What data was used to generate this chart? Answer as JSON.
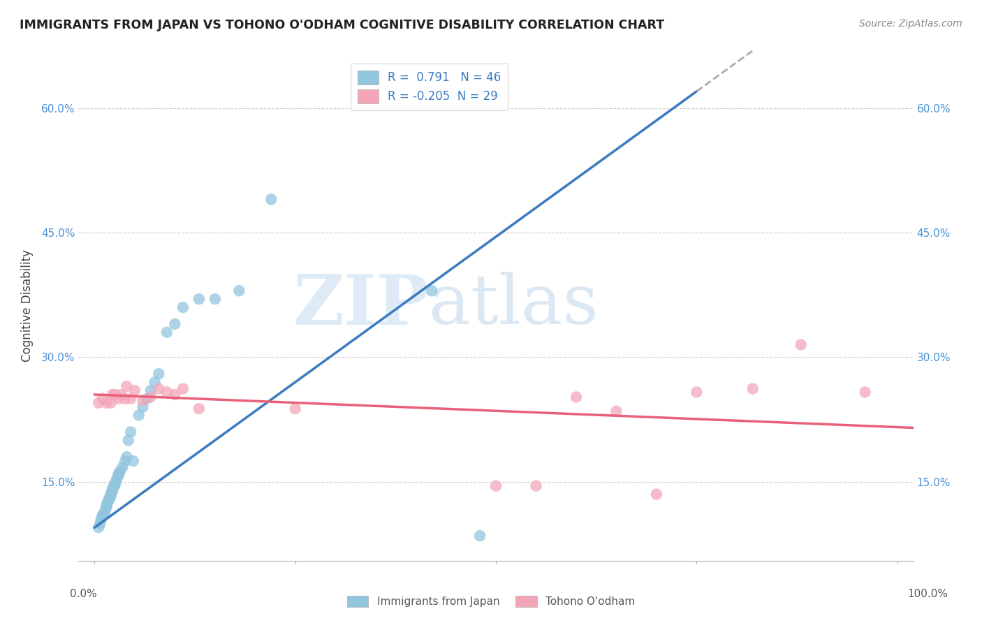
{
  "title": "IMMIGRANTS FROM JAPAN VS TOHONO O'ODHAM COGNITIVE DISABILITY CORRELATION CHART",
  "source": "Source: ZipAtlas.com",
  "ylabel": "Cognitive Disability",
  "r_blue": 0.791,
  "n_blue": 46,
  "r_pink": -0.205,
  "n_pink": 29,
  "blue_color": "#92c5de",
  "pink_color": "#f4a6b8",
  "blue_line_color": "#3a7bbf",
  "pink_line_color": "#e8607a",
  "xlim": [
    -0.02,
    1.02
  ],
  "ylim": [
    0.055,
    0.67
  ],
  "yticks": [
    0.15,
    0.3,
    0.45,
    0.6
  ],
  "ytick_labels": [
    "15.0%",
    "30.0%",
    "45.0%",
    "60.0%"
  ],
  "watermark_zip": "ZIP",
  "watermark_atlas": "atlas",
  "blue_scatter_x": [
    0.005,
    0.007,
    0.008,
    0.01,
    0.01,
    0.012,
    0.013,
    0.014,
    0.015,
    0.015,
    0.016,
    0.018,
    0.018,
    0.02,
    0.02,
    0.022,
    0.022,
    0.023,
    0.025,
    0.025,
    0.027,
    0.028,
    0.03,
    0.03,
    0.032,
    0.035,
    0.038,
    0.04,
    0.042,
    0.045,
    0.048,
    0.055,
    0.06,
    0.065,
    0.07,
    0.075,
    0.08,
    0.09,
    0.1,
    0.11,
    0.13,
    0.15,
    0.18,
    0.22,
    0.42,
    0.48
  ],
  "blue_scatter_y": [
    0.095,
    0.1,
    0.105,
    0.108,
    0.11,
    0.112,
    0.115,
    0.118,
    0.12,
    0.122,
    0.125,
    0.128,
    0.13,
    0.132,
    0.135,
    0.138,
    0.14,
    0.143,
    0.145,
    0.148,
    0.15,
    0.155,
    0.158,
    0.16,
    0.163,
    0.168,
    0.175,
    0.18,
    0.2,
    0.21,
    0.175,
    0.23,
    0.24,
    0.25,
    0.26,
    0.27,
    0.28,
    0.33,
    0.34,
    0.36,
    0.37,
    0.37,
    0.38,
    0.49,
    0.38,
    0.085
  ],
  "pink_scatter_x": [
    0.005,
    0.01,
    0.015,
    0.02,
    0.022,
    0.025,
    0.03,
    0.033,
    0.038,
    0.04,
    0.045,
    0.05,
    0.06,
    0.07,
    0.08,
    0.09,
    0.1,
    0.11,
    0.13,
    0.25,
    0.5,
    0.55,
    0.6,
    0.65,
    0.7,
    0.75,
    0.82,
    0.88,
    0.96
  ],
  "pink_scatter_y": [
    0.245,
    0.25,
    0.245,
    0.245,
    0.255,
    0.255,
    0.25,
    0.255,
    0.25,
    0.265,
    0.25,
    0.26,
    0.248,
    0.252,
    0.262,
    0.258,
    0.255,
    0.262,
    0.238,
    0.238,
    0.145,
    0.145,
    0.252,
    0.235,
    0.135,
    0.258,
    0.262,
    0.315,
    0.258
  ],
  "blue_line_x0": 0.0,
  "blue_line_y0": 0.095,
  "blue_line_x1": 0.75,
  "blue_line_y1": 0.62,
  "pink_line_x0": 0.0,
  "pink_line_y0": 0.255,
  "pink_line_x1": 1.02,
  "pink_line_y1": 0.215
}
